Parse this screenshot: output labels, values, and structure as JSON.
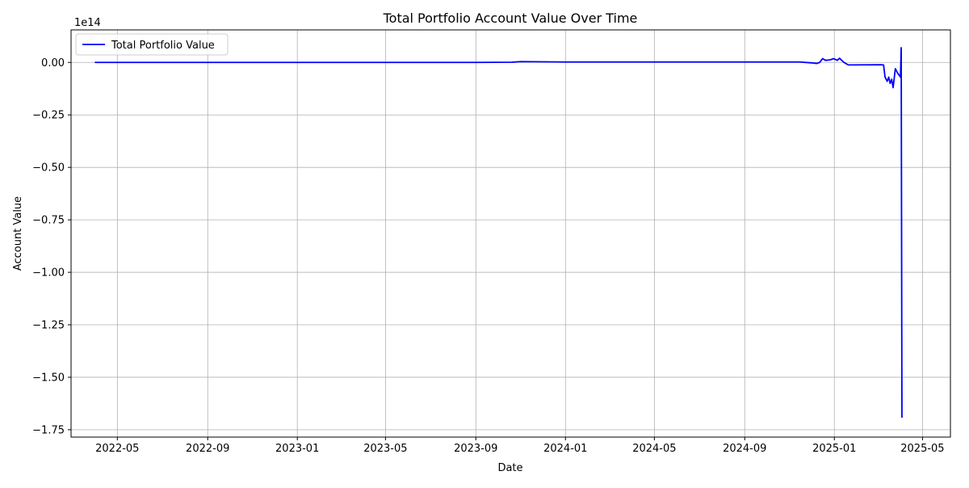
{
  "chart_data": {
    "type": "line",
    "title": "Total Portfolio Account Value Over Time",
    "xlabel": "Date",
    "ylabel": "Account Value",
    "y_offset_label": "1e14",
    "y_scale_multiplier": 100000000000000.0,
    "grid": true,
    "legend_position": "top-left",
    "xlim": [
      "2022-02-27",
      "2025-06-08"
    ],
    "ylim": [
      -1.785,
      0.155
    ],
    "x_ticks": [
      {
        "date": "2022-05-01",
        "label": "2022-05"
      },
      {
        "date": "2022-09-01",
        "label": "2022-09"
      },
      {
        "date": "2023-01-01",
        "label": "2023-01"
      },
      {
        "date": "2023-05-01",
        "label": "2023-05"
      },
      {
        "date": "2023-09-01",
        "label": "2023-09"
      },
      {
        "date": "2024-01-01",
        "label": "2024-01"
      },
      {
        "date": "2024-05-01",
        "label": "2024-05"
      },
      {
        "date": "2024-09-01",
        "label": "2024-09"
      },
      {
        "date": "2025-01-01",
        "label": "2025-01"
      },
      {
        "date": "2025-05-01",
        "label": "2025-05"
      }
    ],
    "y_ticks": [
      {
        "value": 0.0,
        "label": "0.00"
      },
      {
        "value": -0.25,
        "label": "−0.25"
      },
      {
        "value": -0.5,
        "label": "−0.50"
      },
      {
        "value": -0.75,
        "label": "−0.75"
      },
      {
        "value": -1.0,
        "label": "−1.00"
      },
      {
        "value": -1.25,
        "label": "−1.25"
      },
      {
        "value": -1.5,
        "label": "−1.50"
      },
      {
        "value": -1.75,
        "label": "−1.75"
      }
    ],
    "series": [
      {
        "name": "Total Portfolio Value",
        "color": "#0000ff",
        "points": [
          {
            "date": "2022-04-01",
            "y": 0.0
          },
          {
            "date": "2023-09-01",
            "y": 0.0
          },
          {
            "date": "2023-10-20",
            "y": 0.001
          },
          {
            "date": "2023-11-01",
            "y": 0.004
          },
          {
            "date": "2024-01-01",
            "y": 0.002
          },
          {
            "date": "2024-11-15",
            "y": 0.002
          },
          {
            "date": "2024-12-01",
            "y": -0.002
          },
          {
            "date": "2024-12-08",
            "y": -0.005
          },
          {
            "date": "2024-12-12",
            "y": 0.0
          },
          {
            "date": "2024-12-16",
            "y": 0.018
          },
          {
            "date": "2024-12-20",
            "y": 0.01
          },
          {
            "date": "2024-12-26",
            "y": 0.012
          },
          {
            "date": "2024-12-31",
            "y": 0.018
          },
          {
            "date": "2025-01-05",
            "y": 0.01
          },
          {
            "date": "2025-01-08",
            "y": 0.02
          },
          {
            "date": "2025-01-14",
            "y": 0.0
          },
          {
            "date": "2025-01-20",
            "y": -0.012
          },
          {
            "date": "2025-03-05",
            "y": -0.011
          },
          {
            "date": "2025-03-09",
            "y": -0.012
          },
          {
            "date": "2025-03-11",
            "y": -0.07
          },
          {
            "date": "2025-03-14",
            "y": -0.09
          },
          {
            "date": "2025-03-16",
            "y": -0.07
          },
          {
            "date": "2025-03-18",
            "y": -0.1
          },
          {
            "date": "2025-03-20",
            "y": -0.08
          },
          {
            "date": "2025-03-22",
            "y": -0.12
          },
          {
            "date": "2025-03-25",
            "y": -0.03
          },
          {
            "date": "2025-03-28",
            "y": -0.05
          },
          {
            "date": "2025-04-01",
            "y": -0.07
          },
          {
            "date": "2025-04-02",
            "y": 0.07
          },
          {
            "date": "2025-04-03",
            "y": -1.69
          }
        ]
      }
    ]
  }
}
